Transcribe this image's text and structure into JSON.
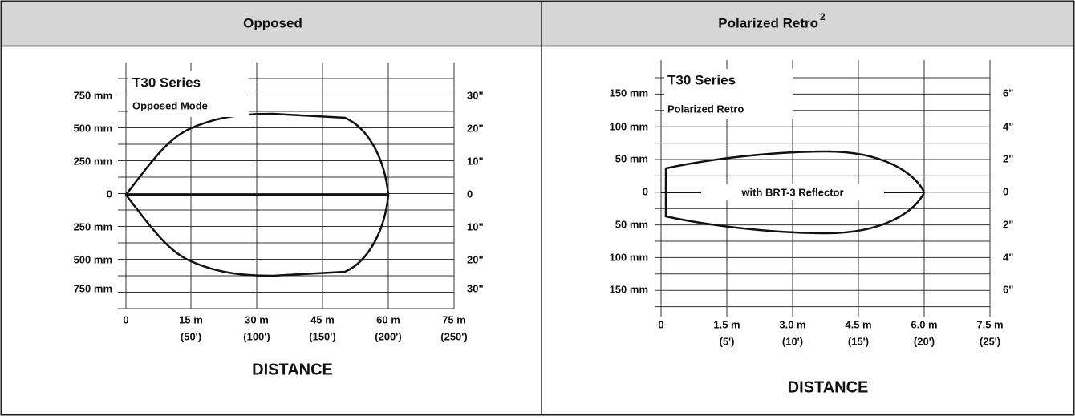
{
  "panels": [
    {
      "header": "Opposed",
      "series_label": "T30 Series",
      "mode_label": "Opposed Mode",
      "left_ticks": [
        "750 mm",
        "500 mm",
        "250 mm",
        "0",
        "250 mm",
        "500 mm",
        "750 mm"
      ],
      "right_ticks": [
        "30\"",
        "20\"",
        "10\"",
        "0",
        "10\"",
        "20\"",
        "30\""
      ],
      "x_ticks": [
        "0",
        "15 m",
        "30 m",
        "45 m",
        "60 m",
        "75 m"
      ],
      "x_subticks": [
        "(50')",
        "(100')",
        "(150')",
        "(200')",
        "(250')"
      ],
      "axis_title": "DISTANCE"
    },
    {
      "header": "Polarized Retro",
      "header_note": "2",
      "series_label": "T30 Series",
      "mode_label": "Polarized Retro",
      "reflector_label": "with BRT-3 Reflector",
      "left_ticks": [
        "150 mm",
        "100 mm",
        "50 mm",
        "0",
        "50 mm",
        "100 mm",
        "150 mm"
      ],
      "right_ticks": [
        "6\"",
        "4\"",
        "2\"",
        "0",
        "2\"",
        "4\"",
        "6\""
      ],
      "x_ticks": [
        "0",
        "1.5 m",
        "3.0 m",
        "4.5 m",
        "6.0 m",
        "7.5 m"
      ],
      "x_subticks": [
        "(5')",
        "(10')",
        "(15')",
        "(20')",
        "(25')"
      ],
      "axis_title": "DISTANCE"
    }
  ]
}
